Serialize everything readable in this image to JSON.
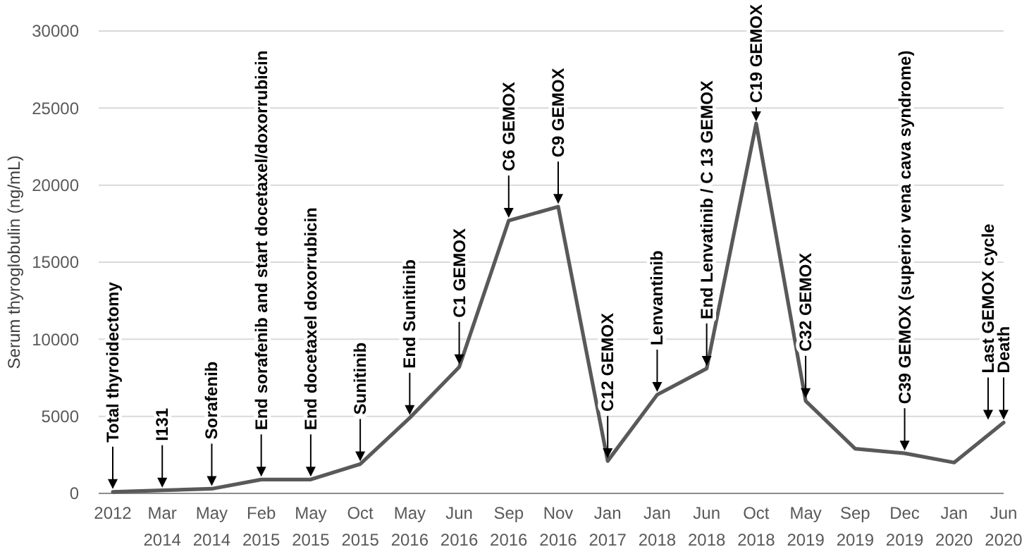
{
  "chart_data": {
    "type": "line",
    "ylabel": "Serum thyroglobulin (ng/mL)",
    "categories": [
      "2012",
      "Mar 2014",
      "May 2014",
      "Feb 2015",
      "May 2015",
      "Oct 2015",
      "May 2016",
      "Jun 2016",
      "Sep 2016",
      "Nov 2016",
      "Jan 2017",
      "Jan 2018",
      "Jun 2018",
      "Oct 2018",
      "May 2019",
      "Sep 2019",
      "Dec 2019",
      "Jan 2020",
      "Jun 2020"
    ],
    "series": [
      {
        "color": "#595959",
        "values": [
          100,
          200,
          300,
          900,
          900,
          1900,
          4900,
          8200,
          17700,
          18600,
          2100,
          6400,
          8100,
          24000,
          6000,
          2900,
          2600,
          2000,
          4600
        ]
      }
    ],
    "ylim": [
      0,
      30000
    ],
    "yticks": [
      0,
      5000,
      10000,
      15000,
      20000,
      25000,
      30000
    ],
    "grid": "y",
    "marker": "none",
    "line_style": "solid",
    "annotations": [
      {
        "text": "Total thyroidectomy",
        "x": "2012",
        "y": 100
      },
      {
        "text": "I131",
        "x": "Mar 2014",
        "y": 200
      },
      {
        "text": "Sorafenib",
        "x": "May 2014",
        "y": 300
      },
      {
        "text": "End sorafenib and start docetaxel/doxorrubicin",
        "x": "Feb 2015",
        "y": 900
      },
      {
        "text": "End docetaxel doxorrubicin",
        "x": "May 2015",
        "y": 900
      },
      {
        "text": "Sunitinib",
        "x": "Oct 2015",
        "y": 1900
      },
      {
        "text": "End Sunitinib",
        "x": "May 2016",
        "y": 4900
      },
      {
        "text": "C1 GEMOX",
        "x": "Jun 2016",
        "y": 8200
      },
      {
        "text": "C6 GEMOX",
        "x": "Sep 2016",
        "y": 17700
      },
      {
        "text": "C9 GEMOX",
        "x": "Nov 2016",
        "y": 18600
      },
      {
        "text": "C12 GEMOX",
        "x": "Jan 2017",
        "y": 2100
      },
      {
        "text": "Lenvantinib",
        "x": "Jan 2018",
        "y": 6400
      },
      {
        "text": "End Lenvatinib / C 13 GEMOX",
        "x": "Jun 2018",
        "y": 8100
      },
      {
        "text": "C19 GEMOX",
        "x": "Oct 2018",
        "y": 24000
      },
      {
        "text": "C32 GEMOX",
        "x": "May 2019",
        "y": 6000
      },
      {
        "text": "C39 GEMOX (superior vena cava syndrome)",
        "x": "Dec 2019",
        "y": 2600
      },
      {
        "text": "Last GEMOX cycle",
        "x": "Jun 2020",
        "y": 4600
      },
      {
        "text": "Death",
        "x": "Jun 2020",
        "y": 4600
      }
    ]
  }
}
